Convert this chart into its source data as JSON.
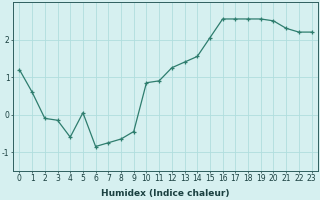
{
  "x": [
    0,
    1,
    2,
    3,
    4,
    5,
    6,
    7,
    8,
    9,
    10,
    11,
    12,
    13,
    14,
    15,
    16,
    17,
    18,
    19,
    20,
    21,
    22,
    23
  ],
  "y": [
    1.2,
    0.6,
    -0.1,
    -0.15,
    -0.6,
    0.05,
    -0.85,
    -0.75,
    -0.65,
    -0.45,
    0.85,
    0.9,
    1.25,
    1.4,
    1.55,
    2.05,
    2.55,
    2.55,
    2.55,
    2.55,
    2.5,
    2.3,
    2.2,
    2.2
  ],
  "line_color": "#2e7d6e",
  "marker": "+",
  "marker_size": 3,
  "bg_color": "#d6f0f0",
  "grid_color": "#b0dede",
  "axis_color": "#2e5f5f",
  "xlabel": "Humidex (Indice chaleur)",
  "xlim": [
    -0.5,
    23.5
  ],
  "ylim": [
    -1.5,
    3.0
  ],
  "yticks": [
    -1,
    0,
    1,
    2
  ],
  "xtick_labels": [
    "0",
    "1",
    "2",
    "3",
    "4",
    "5",
    "6",
    "7",
    "8",
    "9",
    "10",
    "11",
    "12",
    "13",
    "14",
    "15",
    "16",
    "17",
    "18",
    "19",
    "20",
    "21",
    "22",
    "23"
  ],
  "xlabel_fontsize": 6.5,
  "tick_fontsize": 5.5,
  "label_color": "#1a4040",
  "line_width": 0.9
}
